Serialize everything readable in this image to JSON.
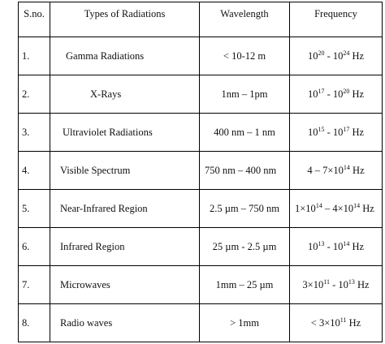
{
  "table": {
    "header": [
      "S.no.",
      "Types of Radiations",
      "Wavelength",
      "Frequency"
    ],
    "rows": [
      [
        "1.",
        "Gamma Radiations",
        "< 10-12 m",
        [
          "10",
          {
            "sup": "20"
          },
          " - 10",
          {
            "sup": "24"
          },
          " Hz"
        ]
      ],
      [
        "2.",
        "X-Rays",
        "1nm – 1pm",
        [
          "10",
          {
            "sup": "17"
          },
          " - 10",
          {
            "sup": "20"
          },
          " Hz"
        ]
      ],
      [
        "3.",
        "Ultraviolet Radiations",
        "400 nm – 1 nm",
        [
          "10",
          {
            "sup": "15"
          },
          " - 10",
          {
            "sup": "17"
          },
          " Hz"
        ]
      ],
      [
        "4.",
        "Visible Spectrum",
        "750 nm – 400 nm",
        [
          "4 – 7×10",
          {
            "sup": "14"
          },
          " Hz"
        ]
      ],
      [
        "5.",
        "Near-Infrared Region",
        "2.5 µm – 750 nm",
        [
          "1×10",
          {
            "sup": "14"
          },
          " – 4×10",
          {
            "sup": "14"
          },
          " Hz"
        ]
      ],
      [
        "6.",
        "Infrared Region",
        "25 µm - 2.5 µm",
        [
          "10",
          {
            "sup": "13"
          },
          " - 10",
          {
            "sup": "14"
          },
          " Hz"
        ]
      ],
      [
        "7.",
        "Microwaves",
        "1mm – 25 µm",
        [
          "3×10",
          {
            "sup": "11"
          },
          " - 10",
          {
            "sup": "13"
          },
          " Hz"
        ]
      ],
      [
        "8.",
        "Radio waves",
        "> 1mm",
        [
          "< 3×10",
          {
            "sup": "11"
          },
          " Hz"
        ]
      ]
    ]
  }
}
